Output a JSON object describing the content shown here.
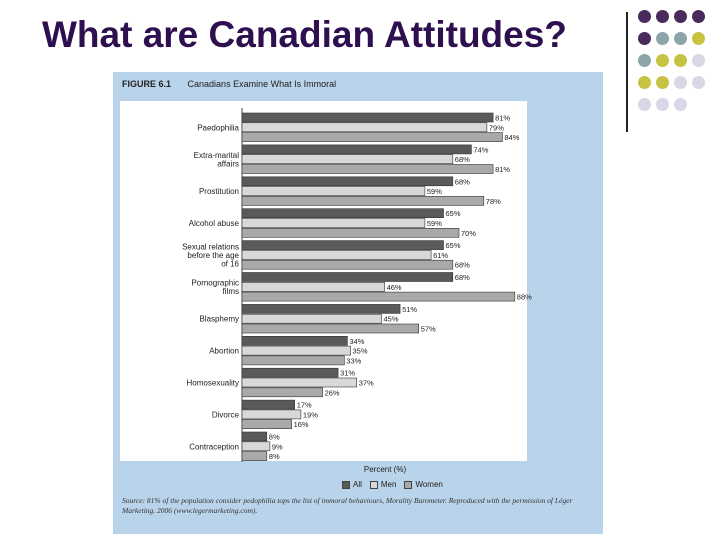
{
  "title": "What are Canadian Attitudes?",
  "figure": {
    "number": "FIGURE 6.1",
    "caption": "Canadians Examine What Is Immoral"
  },
  "decor": {
    "dot_colors": [
      "#4a2a5c",
      "#8ba5a9",
      "#c7c342",
      "#d8d7e6"
    ]
  },
  "chart_data": {
    "type": "bar",
    "orientation": "horizontal",
    "title": "Canadians Examine What Is Immoral",
    "xlabel": "Percent (%)",
    "xlim": [
      0,
      100
    ],
    "categories": [
      [
        "Paedophilia"
      ],
      [
        "Extra-marital",
        "affairs"
      ],
      [
        "Prostitution"
      ],
      [
        "Alcohol abuse"
      ],
      [
        "Sexual relations",
        "before the age",
        "of 16"
      ],
      [
        "Pornographic",
        "films"
      ],
      [
        "Blasphemy"
      ],
      [
        "Abortion"
      ],
      [
        "Homosexuality"
      ],
      [
        "Divorce"
      ],
      [
        "Contraception"
      ]
    ],
    "series": [
      {
        "name": "All",
        "color": "#5a5a5a",
        "values": [
          81,
          74,
          68,
          65,
          65,
          68,
          51,
          34,
          31,
          17,
          8
        ]
      },
      {
        "name": "Men",
        "color": "#d8d8d8",
        "values": [
          79,
          68,
          59,
          59,
          61,
          46,
          45,
          35,
          37,
          19,
          9
        ]
      },
      {
        "name": "Women",
        "color": "#a9a9a9",
        "values": [
          84,
          81,
          78,
          70,
          68,
          88,
          57,
          33,
          26,
          16,
          8
        ]
      }
    ],
    "value_suffix": "%"
  },
  "source": "Source: 81% of the population consider pedophilia tops the list of immoral behaviours, Morality Barometer. Reproduced with the permission of Léger Marketing. 2006 (www.legermarketing.com)."
}
